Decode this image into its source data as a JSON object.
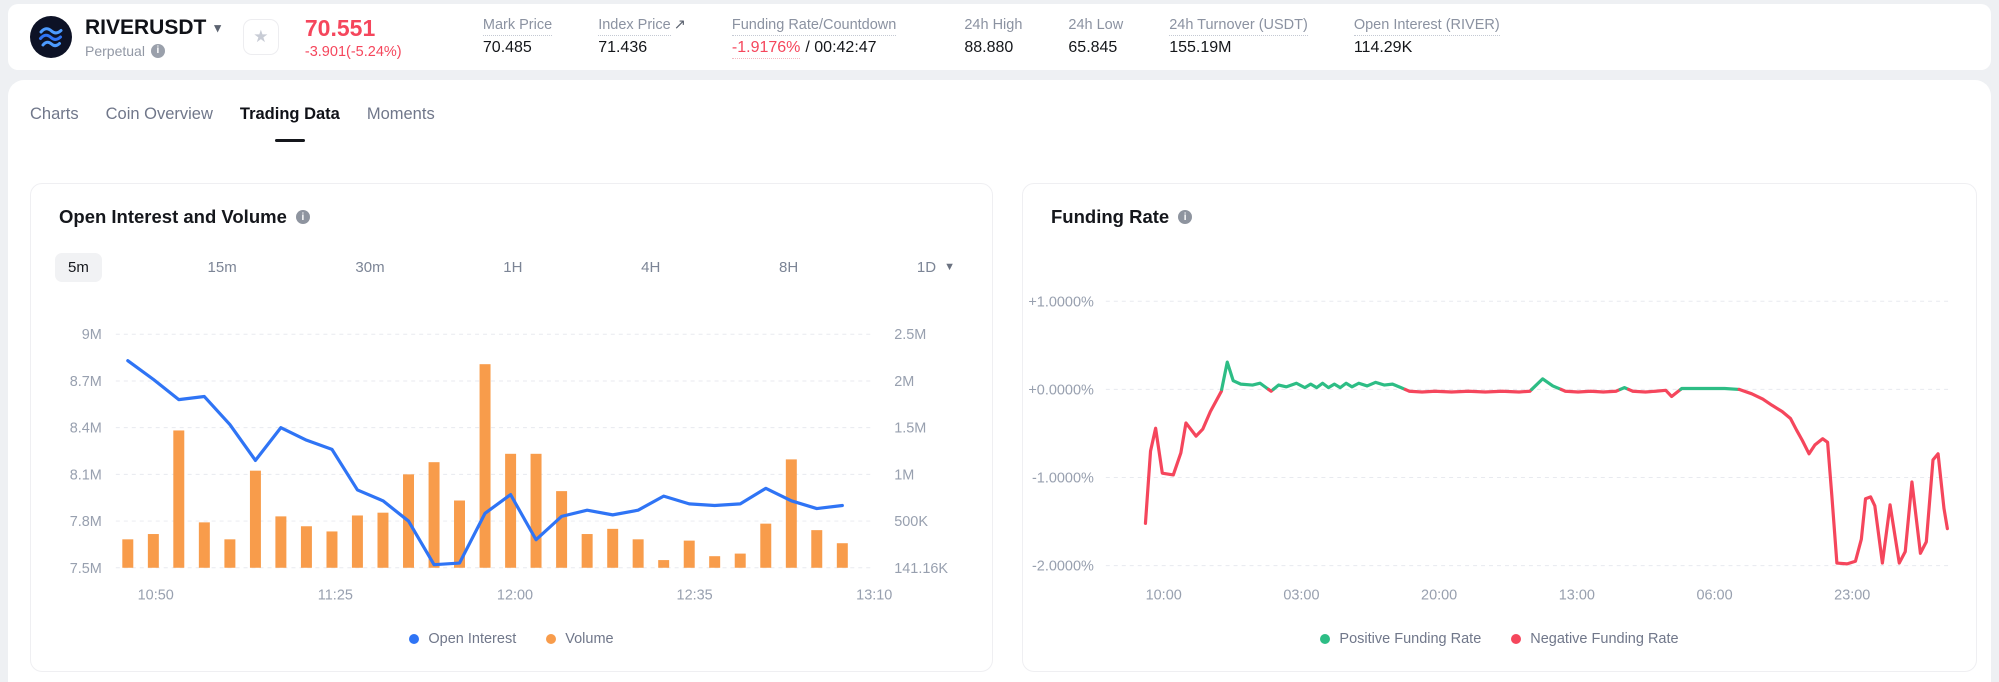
{
  "header": {
    "symbol": "RIVERUSDT",
    "symbol_caret": "▾",
    "contract_type": "Perpetual",
    "star_icon": "★",
    "last_price": "70.551",
    "price_change": "-3.901(-5.24%)",
    "price_color": "#f5465c",
    "stats": {
      "mark_price": {
        "label": "Mark Price",
        "value": "70.485"
      },
      "index_price": {
        "label": "Index Price",
        "arrow": "↗",
        "value": "71.436"
      },
      "funding": {
        "label": "Funding Rate/Countdown",
        "rate": "-1.9176%",
        "countdown": "/ 00:42:47"
      },
      "high": {
        "label": "24h High",
        "value": "88.880"
      },
      "low": {
        "label": "24h Low",
        "value": "65.845"
      },
      "turnover": {
        "label": "24h Turnover (USDT)",
        "value": "155.19M"
      },
      "open_interest": {
        "label": "Open Interest (RIVER)",
        "value": "114.29K"
      }
    }
  },
  "tabs": [
    {
      "label": "Charts"
    },
    {
      "label": "Coin Overview"
    },
    {
      "label": "Trading Data"
    },
    {
      "label": "Moments"
    }
  ],
  "active_tab": "Trading Data",
  "chart_data": [
    {
      "type": "bar",
      "title": "Open Interest and Volume",
      "intervals": [
        "5m",
        "15m",
        "30m",
        "1H",
        "4H",
        "8H",
        "1D"
      ],
      "active_interval": "5m",
      "x_labels": [
        "10:50",
        "11:25",
        "12:00",
        "12:35",
        "13:10"
      ],
      "left_axis": {
        "label": "Open Interest",
        "ticks": [
          "9M",
          "8.7M",
          "8.4M",
          "8.1M",
          "7.8M",
          "7.5M"
        ],
        "min": 7.5,
        "max": 9.0
      },
      "right_axis": {
        "label": "Volume",
        "ticks": [
          "2.5M",
          "2M",
          "1.5M",
          "1M",
          "500K",
          "141.16K"
        ],
        "bottom_value": 0.14116
      },
      "grid": "dashed",
      "legend_position": "bottom",
      "series": [
        {
          "name": "Open Interest",
          "type": "line",
          "axis": "left",
          "color": "#2f74f5",
          "values": [
            8.83,
            8.71,
            8.58,
            8.6,
            8.42,
            8.19,
            8.4,
            8.32,
            8.26,
            8.0,
            7.93,
            7.8,
            7.52,
            7.53,
            7.85,
            7.97,
            7.68,
            7.83,
            7.87,
            7.84,
            7.87,
            7.96,
            7.91,
            7.9,
            7.91,
            8.01,
            7.93,
            7.88,
            7.9
          ]
        },
        {
          "name": "Volume",
          "type": "bar",
          "axis": "right",
          "color": "#f89c4b",
          "values": [
            0.36,
            0.4,
            1.47,
            0.49,
            0.36,
            1.04,
            0.55,
            0.46,
            0.42,
            0.56,
            0.59,
            1.0,
            1.13,
            0.72,
            2.18,
            1.22,
            1.22,
            0.82,
            0.4,
            0.44,
            0.36,
            0.2,
            0.35,
            0.23,
            0.25,
            0.48,
            1.16,
            0.43,
            0.33
          ]
        }
      ]
    },
    {
      "type": "line",
      "title": "Funding Rate",
      "y_ticks": [
        "+1.0000%",
        "+0.0000%",
        "-1.0000%",
        "-2.0000%"
      ],
      "y_range": [
        1.0,
        -2.0
      ],
      "x_labels": [
        "10:00",
        "03:00",
        "20:00",
        "13:00",
        "06:00",
        "23:00"
      ],
      "grid": "dashed",
      "legend": [
        "Positive Funding Rate",
        "Negative Funding Rate"
      ],
      "colors": {
        "positive": "#2dbd85",
        "negative": "#f5465c"
      },
      "points": [
        [
          0.047,
          -1.52
        ],
        [
          0.053,
          -0.7
        ],
        [
          0.059,
          -0.44
        ],
        [
          0.067,
          -0.95
        ],
        [
          0.08,
          -0.97
        ],
        [
          0.089,
          -0.72
        ],
        [
          0.095,
          -0.38
        ],
        [
          0.107,
          -0.53
        ],
        [
          0.115,
          -0.45
        ],
        [
          0.124,
          -0.25
        ],
        [
          0.137,
          -0.02
        ],
        [
          0.144,
          0.31
        ],
        [
          0.151,
          0.1
        ],
        [
          0.16,
          0.06
        ],
        [
          0.174,
          0.05
        ],
        [
          0.183,
          0.07
        ],
        [
          0.19,
          0.02
        ],
        [
          0.196,
          -0.02
        ],
        [
          0.205,
          0.05
        ],
        [
          0.214,
          0.03
        ],
        [
          0.226,
          0.07
        ],
        [
          0.236,
          0.02
        ],
        [
          0.243,
          0.06
        ],
        [
          0.25,
          0.02
        ],
        [
          0.257,
          0.07
        ],
        [
          0.264,
          0.02
        ],
        [
          0.271,
          0.06
        ],
        [
          0.278,
          0.02
        ],
        [
          0.285,
          0.07
        ],
        [
          0.292,
          0.03
        ],
        [
          0.3,
          0.07
        ],
        [
          0.31,
          0.04
        ],
        [
          0.32,
          0.08
        ],
        [
          0.33,
          0.05
        ],
        [
          0.34,
          0.06
        ],
        [
          0.35,
          0.02
        ],
        [
          0.36,
          -0.02
        ],
        [
          0.375,
          -0.03
        ],
        [
          0.39,
          -0.02
        ],
        [
          0.41,
          -0.03
        ],
        [
          0.43,
          -0.02
        ],
        [
          0.45,
          -0.03
        ],
        [
          0.47,
          -0.02
        ],
        [
          0.49,
          -0.03
        ],
        [
          0.503,
          -0.02
        ],
        [
          0.518,
          0.12
        ],
        [
          0.53,
          0.04
        ],
        [
          0.545,
          -0.02
        ],
        [
          0.56,
          -0.03
        ],
        [
          0.575,
          -0.02
        ],
        [
          0.59,
          -0.03
        ],
        [
          0.605,
          -0.02
        ],
        [
          0.615,
          0.02
        ],
        [
          0.625,
          -0.02
        ],
        [
          0.64,
          -0.03
        ],
        [
          0.652,
          -0.02
        ],
        [
          0.664,
          -0.01
        ],
        [
          0.671,
          -0.08
        ],
        [
          0.683,
          0.01
        ],
        [
          0.698,
          0.01
        ],
        [
          0.716,
          0.01
        ],
        [
          0.734,
          0.01
        ],
        [
          0.751,
          0.0
        ],
        [
          0.766,
          -0.05
        ],
        [
          0.779,
          -0.11
        ],
        [
          0.79,
          -0.18
        ],
        [
          0.802,
          -0.25
        ],
        [
          0.812,
          -0.33
        ],
        [
          0.819,
          -0.46
        ],
        [
          0.826,
          -0.58
        ],
        [
          0.834,
          -0.73
        ],
        [
          0.841,
          -0.63
        ],
        [
          0.85,
          -0.56
        ],
        [
          0.856,
          -0.6
        ],
        [
          0.861,
          -1.2
        ],
        [
          0.867,
          -1.97
        ],
        [
          0.879,
          -1.98
        ],
        [
          0.889,
          -1.95
        ],
        [
          0.896,
          -1.7
        ],
        [
          0.901,
          -1.24
        ],
        [
          0.907,
          -1.22
        ],
        [
          0.912,
          -1.32
        ],
        [
          0.921,
          -1.97
        ],
        [
          0.93,
          -1.31
        ],
        [
          0.941,
          -1.97
        ],
        [
          0.948,
          -1.84
        ],
        [
          0.956,
          -1.05
        ],
        [
          0.966,
          -1.86
        ],
        [
          0.973,
          -1.73
        ],
        [
          0.981,
          -0.8
        ],
        [
          0.987,
          -0.73
        ],
        [
          0.994,
          -1.35
        ],
        [
          0.998,
          -1.58
        ]
      ]
    }
  ]
}
